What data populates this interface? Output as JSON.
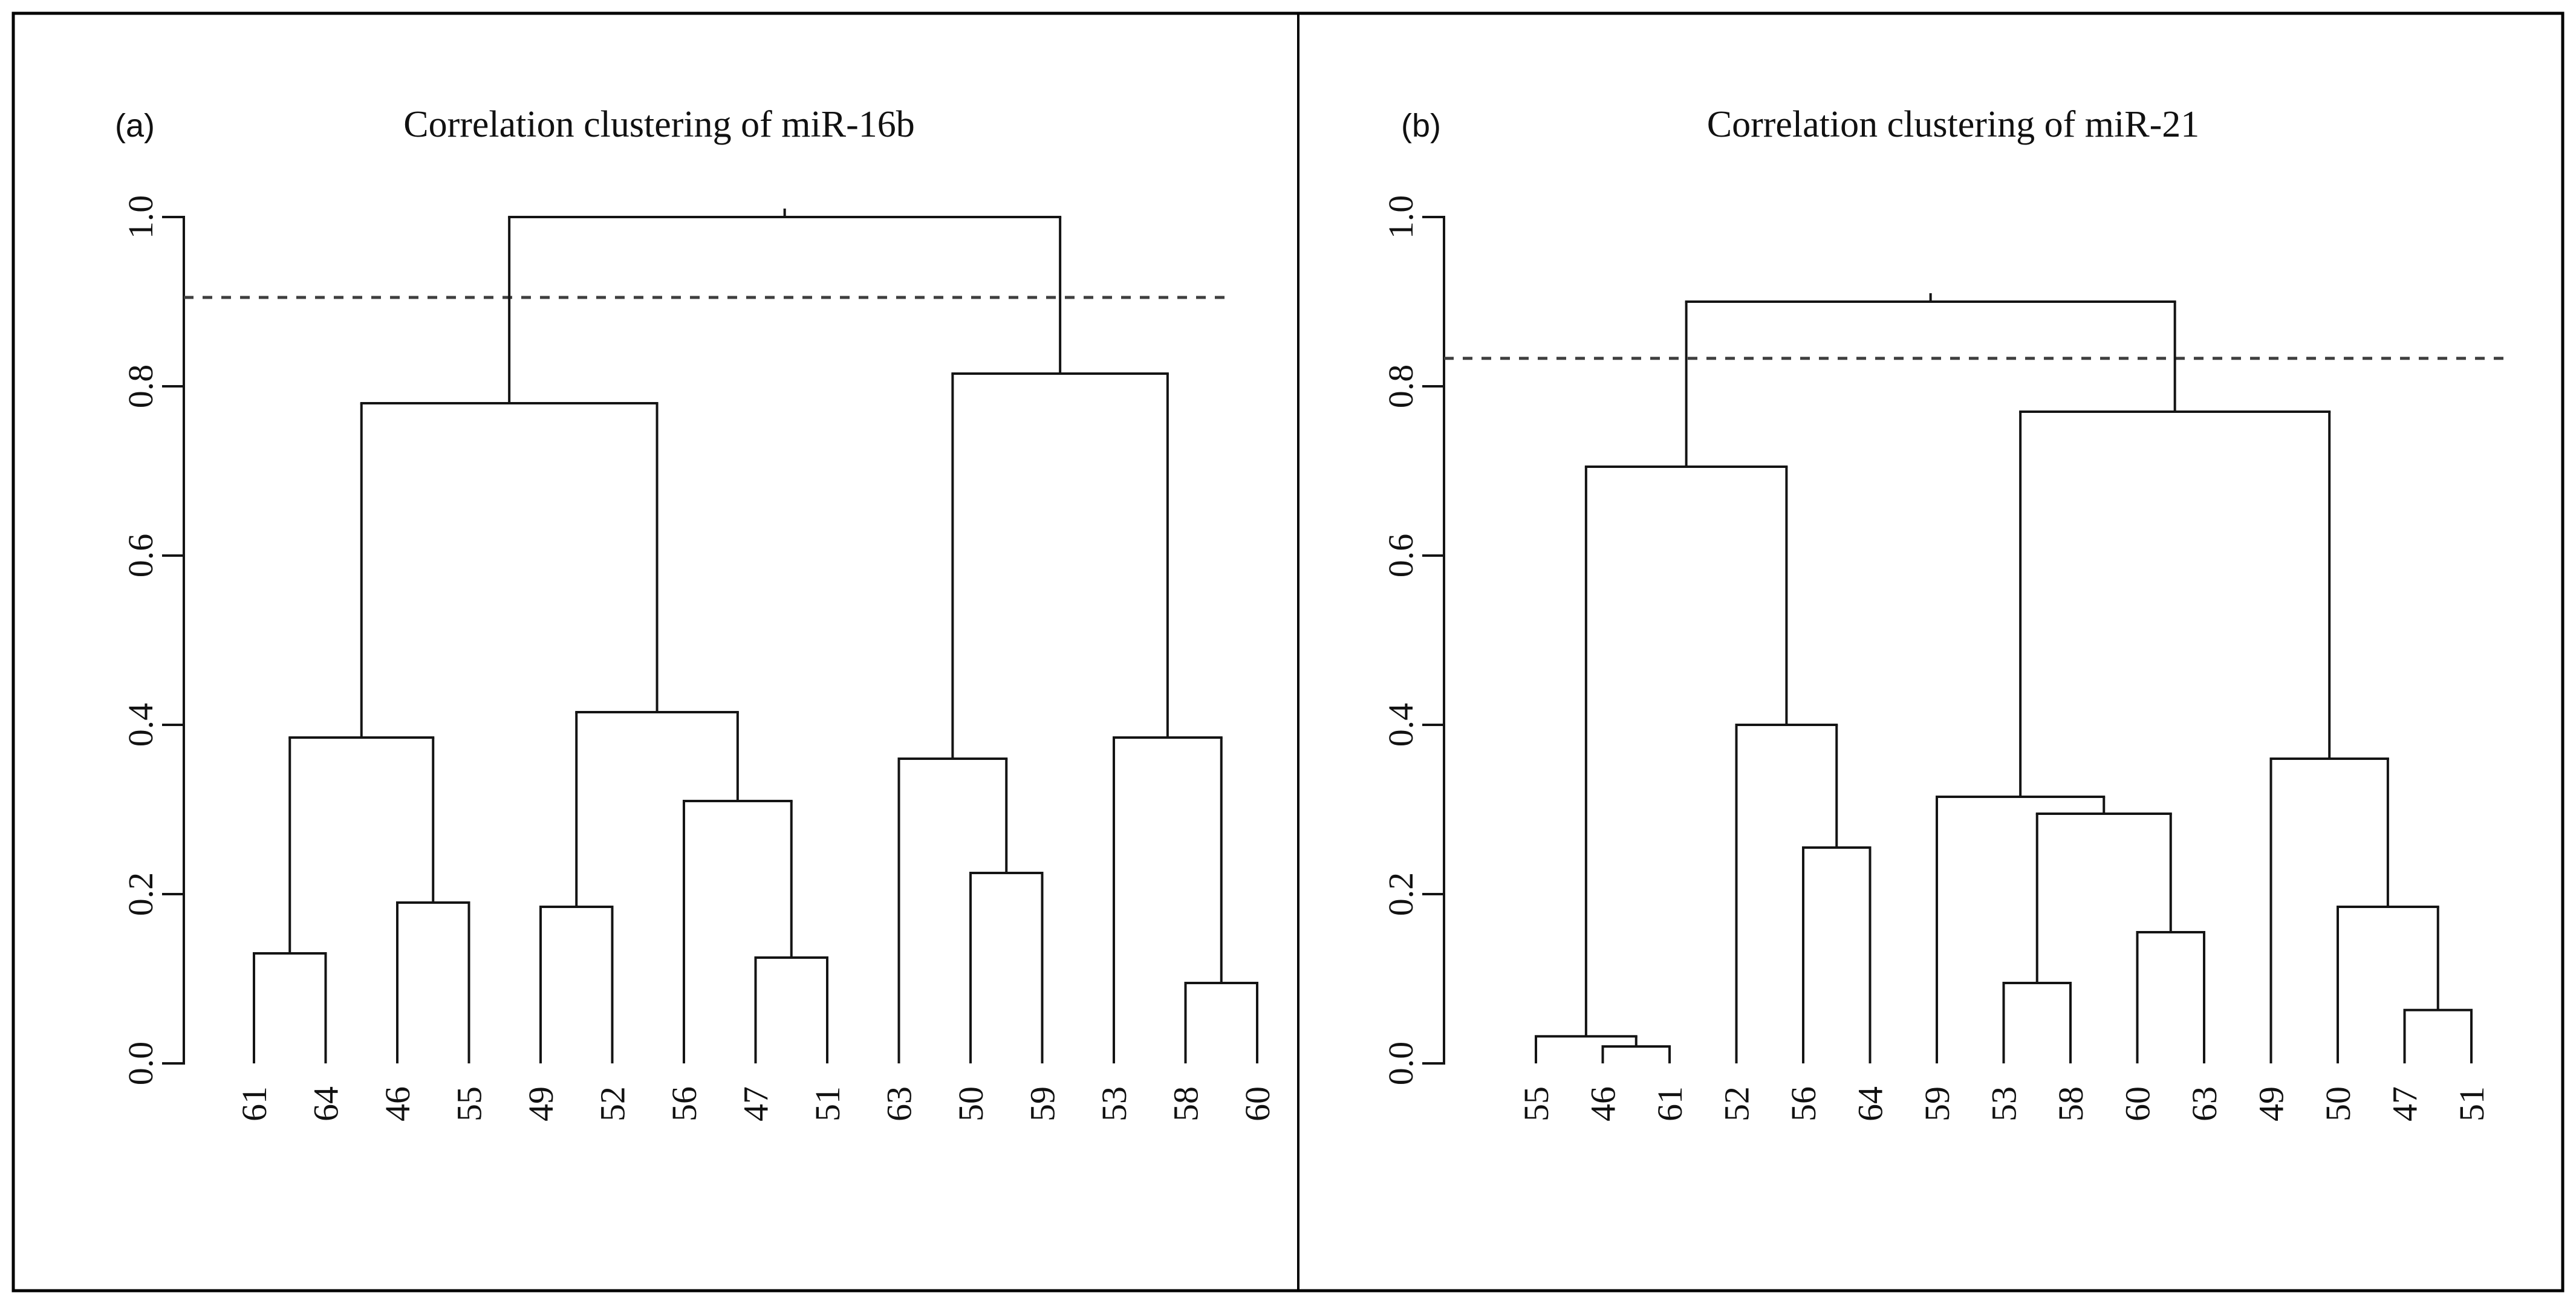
{
  "colors": {
    "line": "#141414",
    "dashed_line": "#3f3f3f",
    "border": "#000000",
    "background": "#ffffff",
    "text": "#111111"
  },
  "chart_data": [
    {
      "type": "dendrogram",
      "panel_label": "(a)",
      "title": "Correlation clustering of miR-16b",
      "ylim": [
        0,
        1
      ],
      "yticks": [
        "0.0",
        "0.2",
        "0.4",
        "0.6",
        "0.8",
        "1.0"
      ],
      "grid": false,
      "cut_line": 0.905,
      "leaves": [
        "61",
        "64",
        "46",
        "55",
        "49",
        "52",
        "56",
        "47",
        "51",
        "63",
        "50",
        "59",
        "53",
        "58",
        "60"
      ],
      "merges": [
        {
          "left": "L0",
          "right": "L1",
          "height": 0.13
        },
        {
          "left": "L2",
          "right": "L3",
          "height": 0.19
        },
        {
          "left": "M0",
          "right": "M1",
          "height": 0.385
        },
        {
          "left": "L7",
          "right": "L8",
          "height": 0.125
        },
        {
          "left": "L6",
          "right": "M3",
          "height": 0.31
        },
        {
          "left": "L4",
          "right": "L5",
          "height": 0.185
        },
        {
          "left": "M5",
          "right": "M4",
          "height": 0.415
        },
        {
          "left": "M2",
          "right": "M6",
          "height": 0.78
        },
        {
          "left": "L10",
          "right": "L11",
          "height": 0.225
        },
        {
          "left": "L9",
          "right": "M8",
          "height": 0.36
        },
        {
          "left": "L13",
          "right": "L14",
          "height": 0.095
        },
        {
          "left": "L12",
          "right": "M10",
          "height": 0.385
        },
        {
          "left": "M9",
          "right": "M11",
          "height": 0.815
        },
        {
          "left": "M7",
          "right": "M12",
          "height": 1.0
        }
      ]
    },
    {
      "type": "dendrogram",
      "panel_label": "(b)",
      "title": "Correlation clustering of miR-21",
      "ylim": [
        0,
        1
      ],
      "yticks": [
        "0.0",
        "0.2",
        "0.4",
        "0.6",
        "0.8",
        "1.0"
      ],
      "grid": false,
      "cut_line": 0.833,
      "leaves": [
        "55",
        "46",
        "61",
        "52",
        "56",
        "64",
        "59",
        "53",
        "58",
        "60",
        "63",
        "49",
        "50",
        "47",
        "51"
      ],
      "merges": [
        {
          "left": "L1",
          "right": "L2",
          "height": 0.02
        },
        {
          "left": "L0",
          "right": "M0",
          "height": 0.032
        },
        {
          "left": "L4",
          "right": "L5",
          "height": 0.255
        },
        {
          "left": "L3",
          "right": "M2",
          "height": 0.4
        },
        {
          "left": "M1",
          "right": "M3",
          "height": 0.705
        },
        {
          "left": "L7",
          "right": "L8",
          "height": 0.095
        },
        {
          "left": "L9",
          "right": "L10",
          "height": 0.155
        },
        {
          "left": "M5",
          "right": "M6",
          "height": 0.295
        },
        {
          "left": "L6",
          "right": "M7",
          "height": 0.315
        },
        {
          "left": "L13",
          "right": "L14",
          "height": 0.063
        },
        {
          "left": "L12",
          "right": "M9",
          "height": 0.185
        },
        {
          "left": "L11",
          "right": "M10",
          "height": 0.36
        },
        {
          "left": "M8",
          "right": "M11",
          "height": 0.77
        },
        {
          "left": "M4",
          "right": "M12",
          "height": 0.9
        }
      ]
    }
  ]
}
